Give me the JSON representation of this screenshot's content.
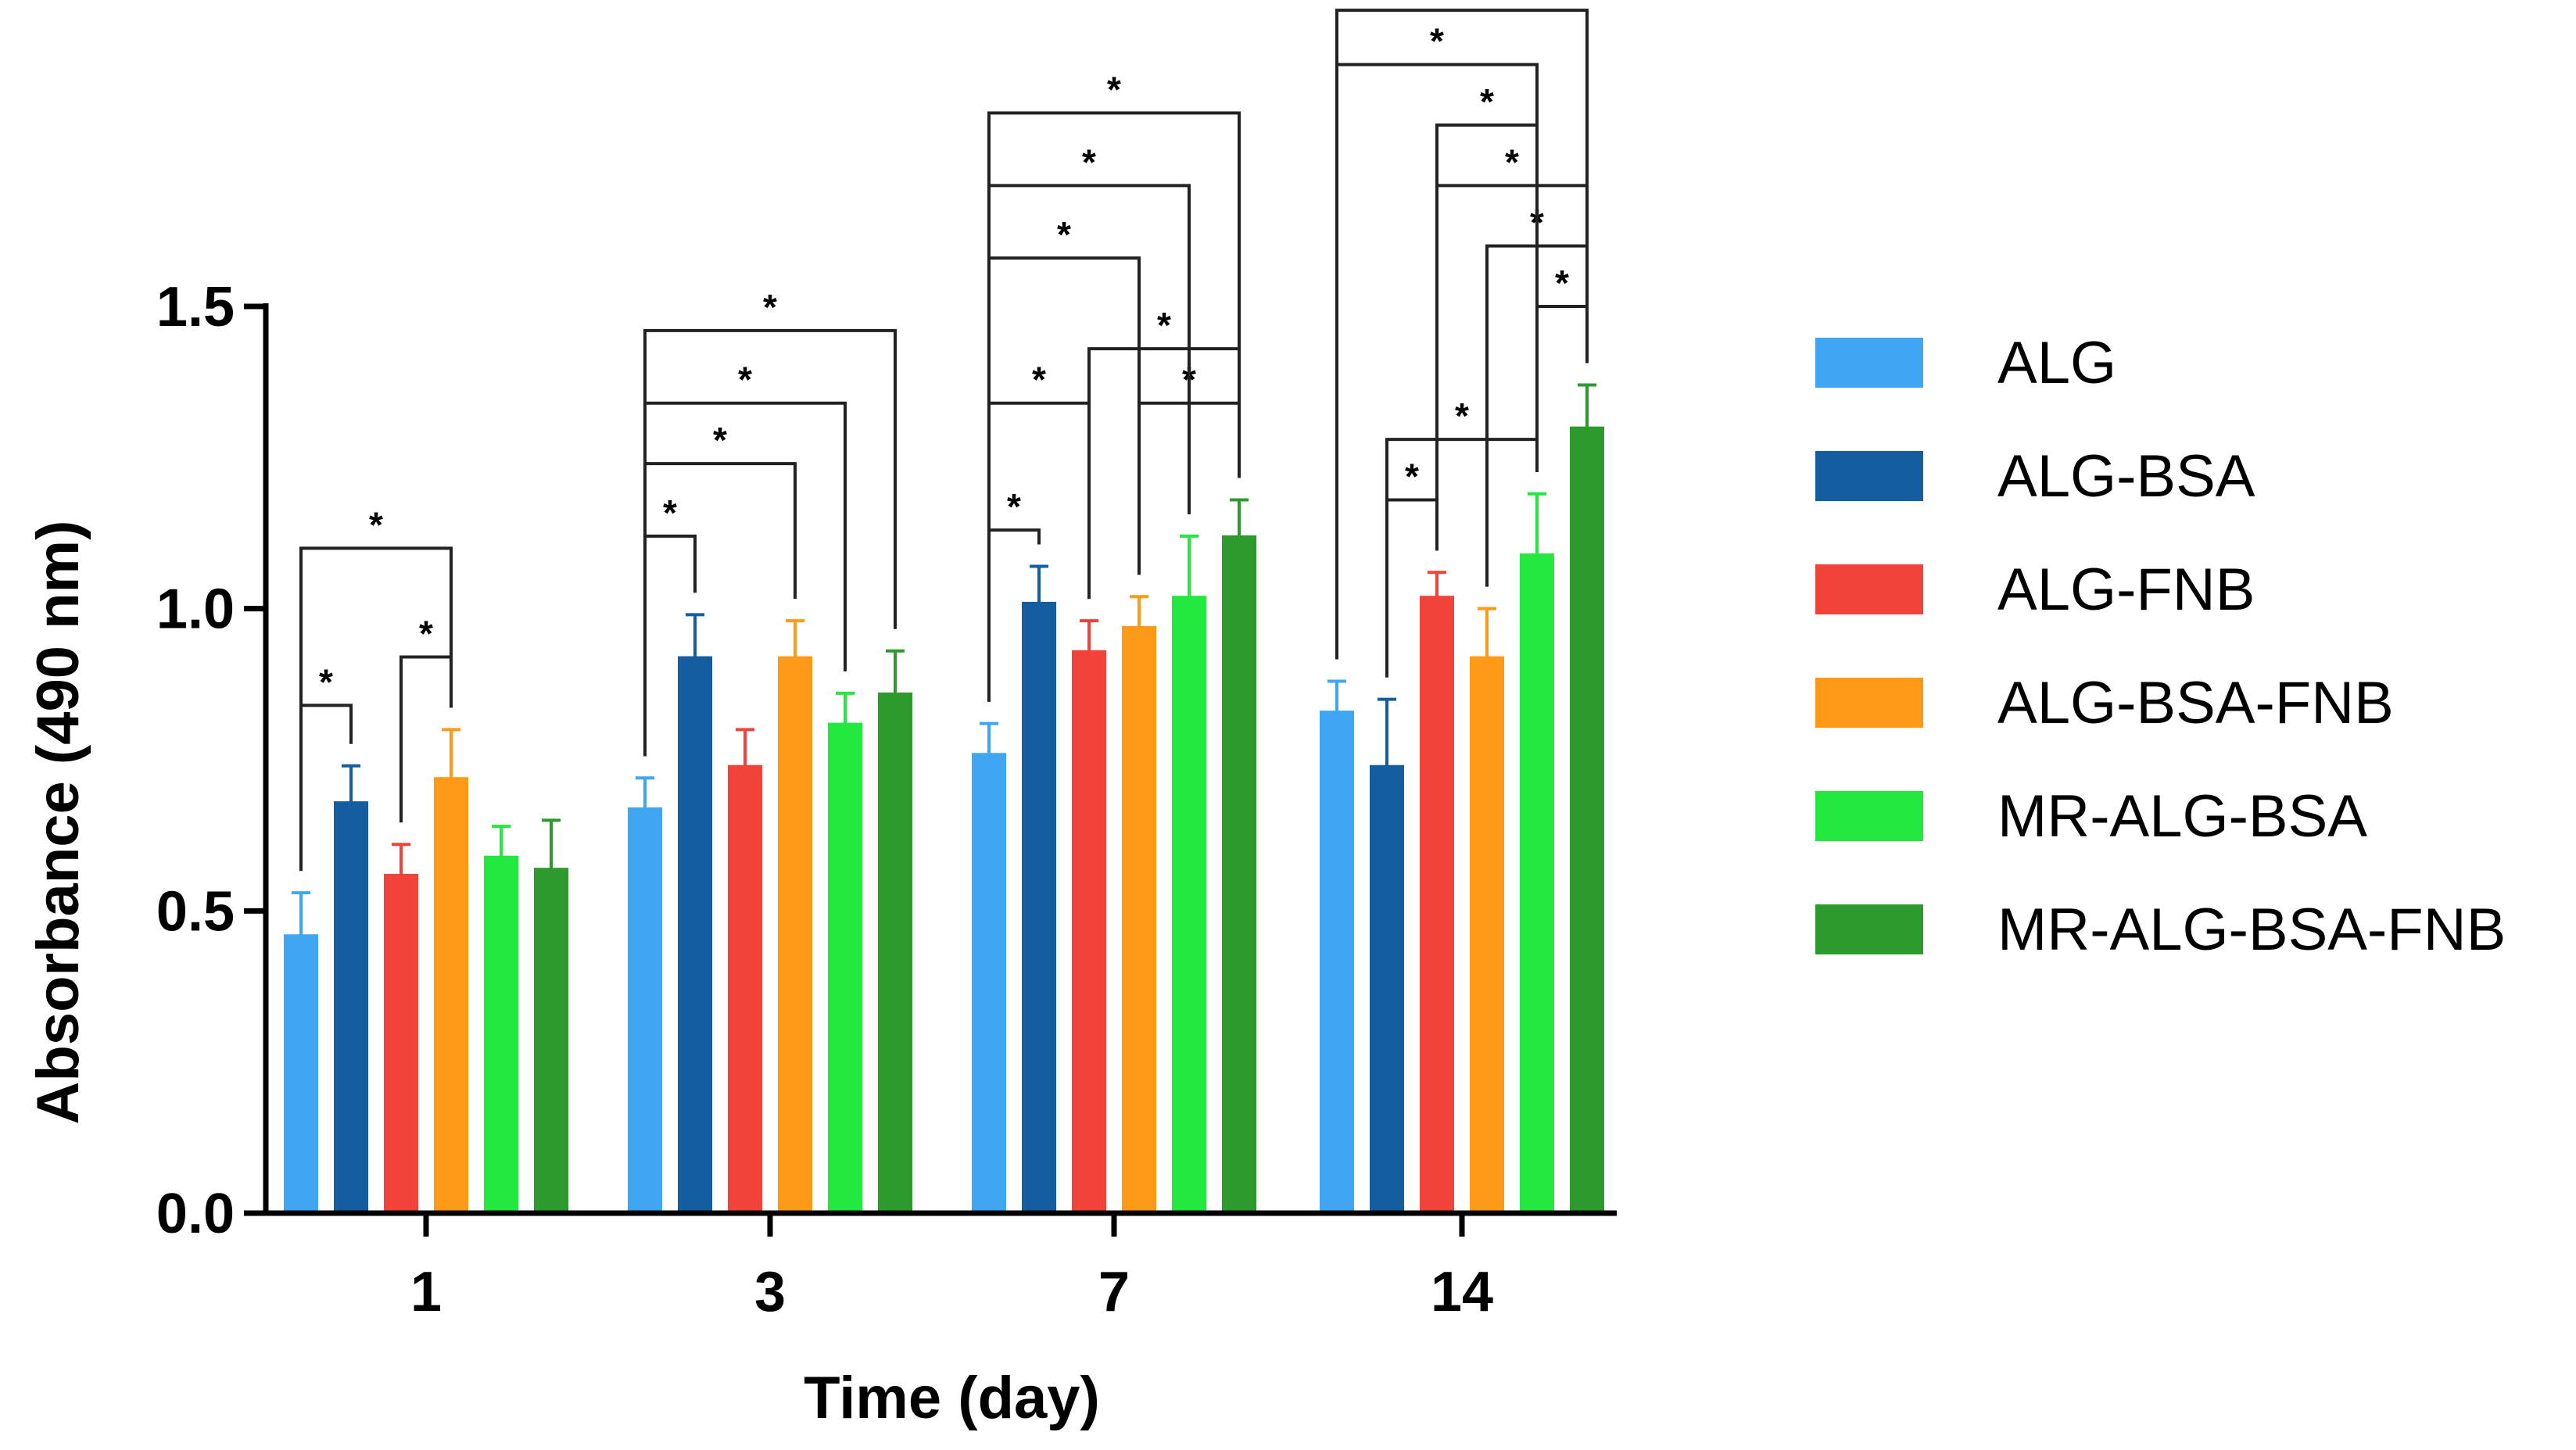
{
  "chart_data": {
    "type": "bar",
    "title": "",
    "xlabel": "Time (day)",
    "ylabel": "Absorbance  (490 nm)",
    "ylim": [
      0,
      1.5
    ],
    "yticks": [
      "0.0",
      "0.5",
      "1.0",
      "1.5"
    ],
    "categories": [
      "1",
      "3",
      "7",
      "14"
    ],
    "legend_position": "right",
    "significance_label": "*",
    "series": [
      {
        "name": "ALG",
        "color": "#3ea6f2",
        "border": "#3ea6f2",
        "values": [
          0.46,
          0.67,
          0.76,
          0.83
        ],
        "errors": [
          0.07,
          0.05,
          0.05,
          0.05
        ]
      },
      {
        "name": "ALG-BSA",
        "color": "#145da0",
        "border": "#145da0",
        "values": [
          0.68,
          0.92,
          1.01,
          0.74
        ],
        "errors": [
          0.06,
          0.07,
          0.06,
          0.11
        ]
      },
      {
        "name": "ALG-FNB",
        "color": "#f2433a",
        "border": "#f2433a",
        "values": [
          0.56,
          0.74,
          0.93,
          1.02
        ],
        "errors": [
          0.05,
          0.06,
          0.05,
          0.04
        ]
      },
      {
        "name": "ALG-BSA-FNB",
        "color": "#ff9a17",
        "border": "#ff9a17",
        "values": [
          0.72,
          0.92,
          0.97,
          0.92
        ],
        "errors": [
          0.08,
          0.06,
          0.05,
          0.08
        ]
      },
      {
        "name": "MR-ALG-BSA",
        "color": "#22e83f",
        "border": "#22e83f",
        "values": [
          0.59,
          0.81,
          1.02,
          1.09
        ],
        "errors": [
          0.05,
          0.05,
          0.1,
          0.1
        ]
      },
      {
        "name": "MR-ALG-BSA-FNB",
        "color": "#2d9a2d",
        "border": "#2d9a2d",
        "values": [
          0.57,
          0.86,
          1.12,
          1.3
        ],
        "errors": [
          0.08,
          0.07,
          0.06,
          0.07
        ]
      }
    ],
    "significance": [
      {
        "group": 0,
        "a": 0,
        "b": 1,
        "y": 0.84
      },
      {
        "group": 0,
        "a": 2,
        "b": 3,
        "y": 0.92
      },
      {
        "group": 0,
        "a": 0,
        "b": 3,
        "y": 1.1
      },
      {
        "group": 1,
        "a": 0,
        "b": 1,
        "y": 1.12
      },
      {
        "group": 1,
        "a": 0,
        "b": 3,
        "y": 1.24
      },
      {
        "group": 1,
        "a": 0,
        "b": 4,
        "y": 1.34
      },
      {
        "group": 1,
        "a": 0,
        "b": 5,
        "y": 1.46
      },
      {
        "group": 2,
        "a": 0,
        "b": 1,
        "y": 1.13
      },
      {
        "group": 2,
        "a": 0,
        "b": 2,
        "y": 1.34
      },
      {
        "group": 2,
        "a": 3,
        "b": 5,
        "y": 1.34
      },
      {
        "group": 2,
        "a": 2,
        "b": 5,
        "y": 1.43
      },
      {
        "group": 2,
        "a": 0,
        "b": 3,
        "y": 1.58
      },
      {
        "group": 2,
        "a": 0,
        "b": 4,
        "y": 1.7
      },
      {
        "group": 2,
        "a": 0,
        "b": 5,
        "y": 1.82
      },
      {
        "group": 3,
        "a": 1,
        "b": 2,
        "y": 1.18
      },
      {
        "group": 3,
        "a": 1,
        "b": 4,
        "y": 1.28
      },
      {
        "group": 3,
        "a": 4,
        "b": 5,
        "y": 1.5
      },
      {
        "group": 3,
        "a": 3,
        "b": 5,
        "y": 1.6
      },
      {
        "group": 3,
        "a": 2,
        "b": 5,
        "y": 1.7
      },
      {
        "group": 3,
        "a": 2,
        "b": 4,
        "y": 1.8
      },
      {
        "group": 3,
        "a": 0,
        "b": 4,
        "y": 1.9
      },
      {
        "group": 3,
        "a": 0,
        "b": 5,
        "y": 1.99
      }
    ]
  }
}
